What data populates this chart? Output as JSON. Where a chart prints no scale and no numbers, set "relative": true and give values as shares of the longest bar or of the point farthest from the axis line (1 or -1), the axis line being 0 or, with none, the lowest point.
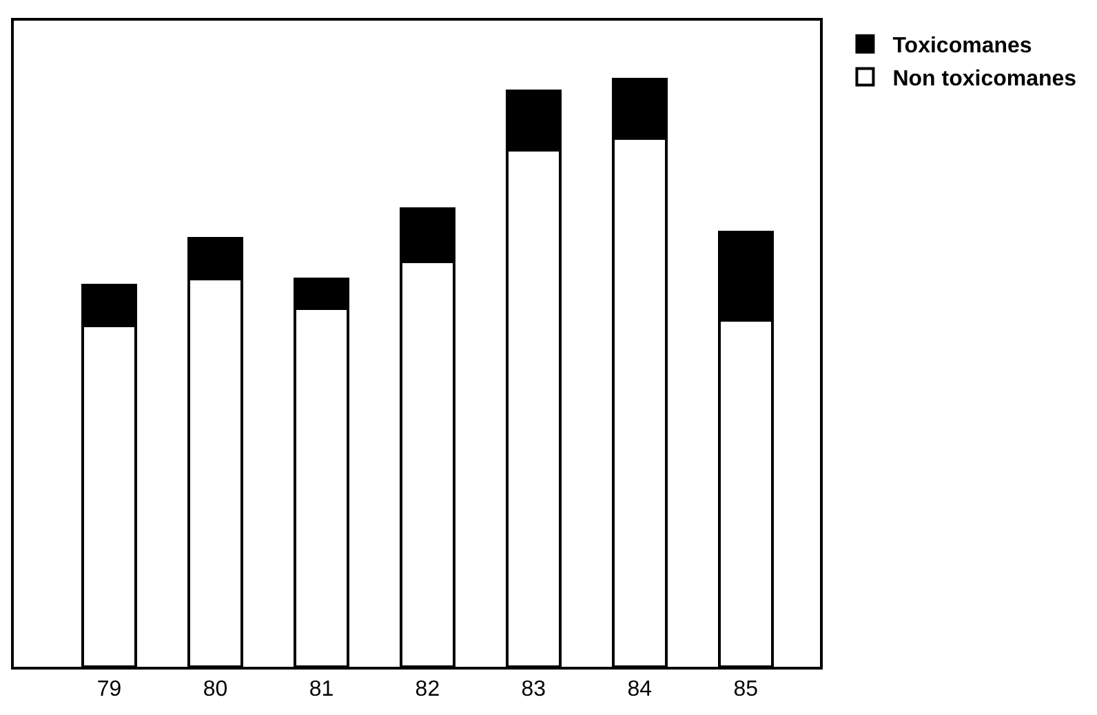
{
  "chart_data": {
    "type": "bar",
    "stacked": true,
    "relative": true,
    "categories": [
      "79",
      "80",
      "81",
      "82",
      "83",
      "84",
      "85"
    ],
    "series": [
      {
        "name": "Non toxicomanes",
        "color": "#ffffff",
        "values": [
          0.58,
          0.66,
          0.61,
          0.69,
          0.88,
          0.9,
          0.59
        ]
      },
      {
        "name": "Toxicomanes",
        "color": "#000000",
        "values": [
          0.07,
          0.07,
          0.05,
          0.09,
          0.1,
          0.1,
          0.15
        ]
      }
    ],
    "legend": "top right"
  }
}
